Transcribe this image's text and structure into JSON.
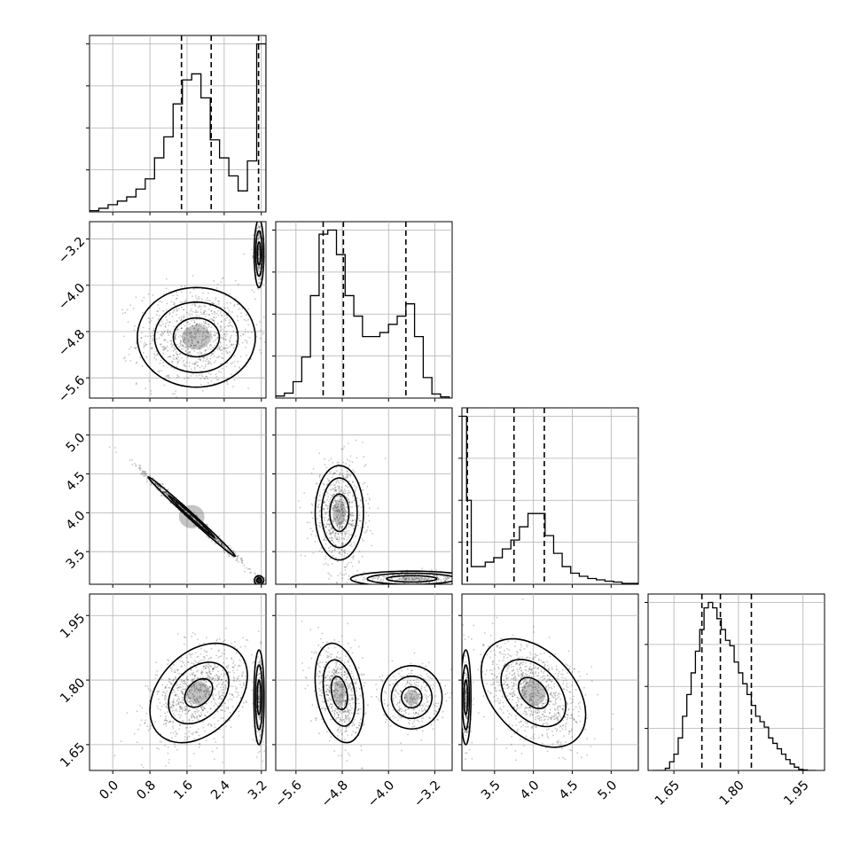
{
  "chart_data": {
    "type": "corner",
    "grid": true,
    "colors": {
      "points": "#000000",
      "lines": "#000000",
      "grid": "#b0b0b0"
    },
    "parameters": [
      {
        "id": "p0",
        "range": [
          -0.5,
          3.3
        ],
        "ticks": [
          0.0,
          0.8,
          1.6,
          2.4,
          3.2
        ],
        "tick_labels": [
          "0.0",
          "0.8",
          "1.6",
          "2.4",
          "3.2"
        ],
        "quantiles": [
          1.48,
          2.12,
          3.14
        ]
      },
      {
        "id": "p1",
        "range": [
          -5.95,
          -2.9
        ],
        "ticks": [
          -5.6,
          -4.8,
          -4.0,
          -3.2
        ],
        "tick_labels": [
          "−5.6",
          "−4.8",
          "−4.0",
          "−3.2"
        ],
        "quantiles": [
          -5.13,
          -4.78,
          -3.7
        ]
      },
      {
        "id": "p2",
        "range": [
          3.08,
          5.35
        ],
        "ticks": [
          3.5,
          4.0,
          4.5,
          5.0
        ],
        "tick_labels": [
          "3.5",
          "4.0",
          "4.5",
          "5.0"
        ],
        "quantiles": [
          3.15,
          3.75,
          4.14
        ]
      },
      {
        "id": "p3",
        "range": [
          1.59,
          2.0
        ],
        "ticks": [
          1.65,
          1.8,
          1.95
        ],
        "tick_labels": [
          "1.65",
          "1.80",
          "1.95"
        ],
        "quantiles": [
          1.715,
          1.758,
          1.83
        ]
      }
    ],
    "histograms": [
      {
        "param": "p0",
        "edges": [
          -0.5,
          -0.3,
          -0.1,
          0.1,
          0.3,
          0.5,
          0.7,
          0.9,
          1.1,
          1.3,
          1.5,
          1.7,
          1.9,
          2.1,
          2.3,
          2.5,
          2.7,
          2.9,
          3.1,
          3.3
        ],
        "counts": [
          0.2,
          0.6,
          1.2,
          1.8,
          2.5,
          3.8,
          5.5,
          9.0,
          12.5,
          18.0,
          22.0,
          23.0,
          19.0,
          12.0,
          9.0,
          6.0,
          3.5,
          8.5,
          28.0
        ]
      },
      {
        "param": "p1",
        "edges": [
          -5.95,
          -5.8,
          -5.65,
          -5.5,
          -5.35,
          -5.2,
          -5.05,
          -4.9,
          -4.75,
          -4.6,
          -4.45,
          -4.3,
          -4.15,
          -4.0,
          -3.85,
          -3.7,
          -3.55,
          -3.4,
          -3.25,
          -3.1,
          -2.95
        ],
        "counts": [
          0.5,
          1.2,
          4.0,
          10.0,
          25.0,
          40.0,
          41.0,
          35.0,
          25.0,
          20.0,
          15.0,
          15.0,
          16.0,
          18.0,
          20.0,
          23.0,
          15.0,
          5.0,
          1.0,
          0.3
        ]
      },
      {
        "param": "p2",
        "edges": [
          3.08,
          3.14,
          3.2,
          3.27,
          3.38,
          3.49,
          3.6,
          3.71,
          3.82,
          3.93,
          4.04,
          4.15,
          4.26,
          4.37,
          4.48,
          4.59,
          4.7,
          4.81,
          4.92,
          5.03,
          5.14,
          5.35
        ],
        "counts": [
          38.0,
          19.0,
          4.0,
          4.0,
          5.0,
          6.0,
          8.0,
          10.0,
          13.0,
          16.0,
          16.0,
          11.0,
          7.0,
          4.0,
          2.5,
          1.8,
          1.3,
          1.0,
          0.7,
          0.5,
          0.2
        ]
      },
      {
        "param": "p3",
        "edges": [
          1.6,
          1.61,
          1.62,
          1.63,
          1.64,
          1.65,
          1.66,
          1.67,
          1.68,
          1.69,
          1.7,
          1.71,
          1.72,
          1.73,
          1.74,
          1.75,
          1.76,
          1.77,
          1.78,
          1.79,
          1.8,
          1.81,
          1.82,
          1.83,
          1.84,
          1.85,
          1.86,
          1.87,
          1.88,
          1.89,
          1.9,
          1.91,
          1.92,
          1.93,
          1.94,
          1.95,
          1.96,
          1.97,
          1.98
        ],
        "counts": [
          0,
          0,
          0,
          0.2,
          0.8,
          1.5,
          3.0,
          5.0,
          7.0,
          9.0,
          11.0,
          13.0,
          15.0,
          15.5,
          15.0,
          14.0,
          13.0,
          12.0,
          11.5,
          10.0,
          9.0,
          8.0,
          7.0,
          6.0,
          5.0,
          4.5,
          4.0,
          3.0,
          2.5,
          2.0,
          1.5,
          1.0,
          0.6,
          0.3,
          0.1,
          0.05,
          0,
          0
        ]
      }
    ],
    "pairs": [
      {
        "x": "p0",
        "y": "p1",
        "clusters": [
          {
            "mean": [
              1.8,
              -4.9
            ],
            "sd": [
              0.62,
              0.42
            ],
            "rho": 0.0,
            "n": 950,
            "contours": [
              {
                "r": 0.8
              },
              {
                "r": 1.45
              },
              {
                "r": 2.05
              }
            ]
          },
          {
            "mean": [
              3.15,
              -3.45
            ],
            "sd": [
              0.05,
              0.28
            ],
            "rho": 0.0,
            "n": 240,
            "contours": [
              {
                "r": 0.7
              },
              {
                "r": 1.4
              },
              {
                "r": 2.1
              }
            ]
          }
        ]
      },
      {
        "x": "p0",
        "y": "p2",
        "clusters": [
          {
            "mean": [
              1.7,
              3.95
            ],
            "sd": [
              0.55,
              0.3
            ],
            "rho": -0.995,
            "n": 800,
            "contours": [
              {
                "r": 0.9
              },
              {
                "r": 1.7
              }
            ]
          },
          {
            "mean": [
              3.15,
              3.13
            ],
            "sd": [
              0.05,
              0.03
            ],
            "rho": 0.0,
            "n": 150,
            "contours": [
              {
                "r": 1.0
              },
              {
                "r": 2.0
              }
            ]
          }
        ]
      },
      {
        "x": "p1",
        "y": "p2",
        "clusters": [
          {
            "mean": [
              -4.85,
              4.0
            ],
            "sd": [
              0.22,
              0.32
            ],
            "rho": 0.0,
            "n": 750,
            "contours": [
              {
                "r": 0.75
              },
              {
                "r": 1.4
              },
              {
                "r": 1.9
              }
            ]
          },
          {
            "mean": [
              -3.6,
              3.15
            ],
            "sd": [
              0.48,
              0.045
            ],
            "rho": 0.0,
            "n": 300,
            "contours": [
              {
                "r": 0.9
              },
              {
                "r": 1.6
              },
              {
                "r": 2.2
              }
            ]
          }
        ]
      },
      {
        "x": "p0",
        "y": "p3",
        "clusters": [
          {
            "mean": [
              1.85,
              1.77
            ],
            "sd": [
              0.5,
              0.055
            ],
            "rho": 0.35,
            "n": 950,
            "contours": [
              {
                "r": 0.6
              },
              {
                "r": 1.3
              },
              {
                "r": 2.1
              }
            ]
          },
          {
            "mean": [
              3.15,
              1.76
            ],
            "sd": [
              0.05,
              0.05
            ],
            "rho": 0.0,
            "n": 250,
            "contours": [
              {
                "r": 0.8
              },
              {
                "r": 1.5
              },
              {
                "r": 2.2
              }
            ]
          }
        ]
      },
      {
        "x": "p1",
        "y": "p3",
        "clusters": [
          {
            "mean": [
              -4.85,
              1.77
            ],
            "sd": [
              0.2,
              0.055
            ],
            "rho": -0.3,
            "n": 650,
            "contours": [
              {
                "r": 0.7
              },
              {
                "r": 1.4
              },
              {
                "r": 2.1
              }
            ]
          },
          {
            "mean": [
              -3.6,
              1.76
            ],
            "sd": [
              0.25,
              0.035
            ],
            "rho": 0.0,
            "n": 350,
            "contours": [
              {
                "r": 0.7
              },
              {
                "r": 1.4
              },
              {
                "r": 2.1
              }
            ]
          }
        ]
      },
      {
        "x": "p2",
        "y": "p3",
        "clusters": [
          {
            "mean": [
              4.0,
              1.77
            ],
            "sd": [
              0.32,
              0.06
            ],
            "rho": -0.4,
            "n": 900,
            "contours": [
              {
                "r": 0.6
              },
              {
                "r": 1.3
              },
              {
                "r": 2.1
              }
            ]
          },
          {
            "mean": [
              3.13,
              1.76
            ],
            "sd": [
              0.03,
              0.05
            ],
            "rho": 0.0,
            "n": 250,
            "contours": [
              {
                "r": 0.8
              },
              {
                "r": 1.5
              },
              {
                "r": 2.2
              }
            ]
          }
        ]
      }
    ]
  }
}
